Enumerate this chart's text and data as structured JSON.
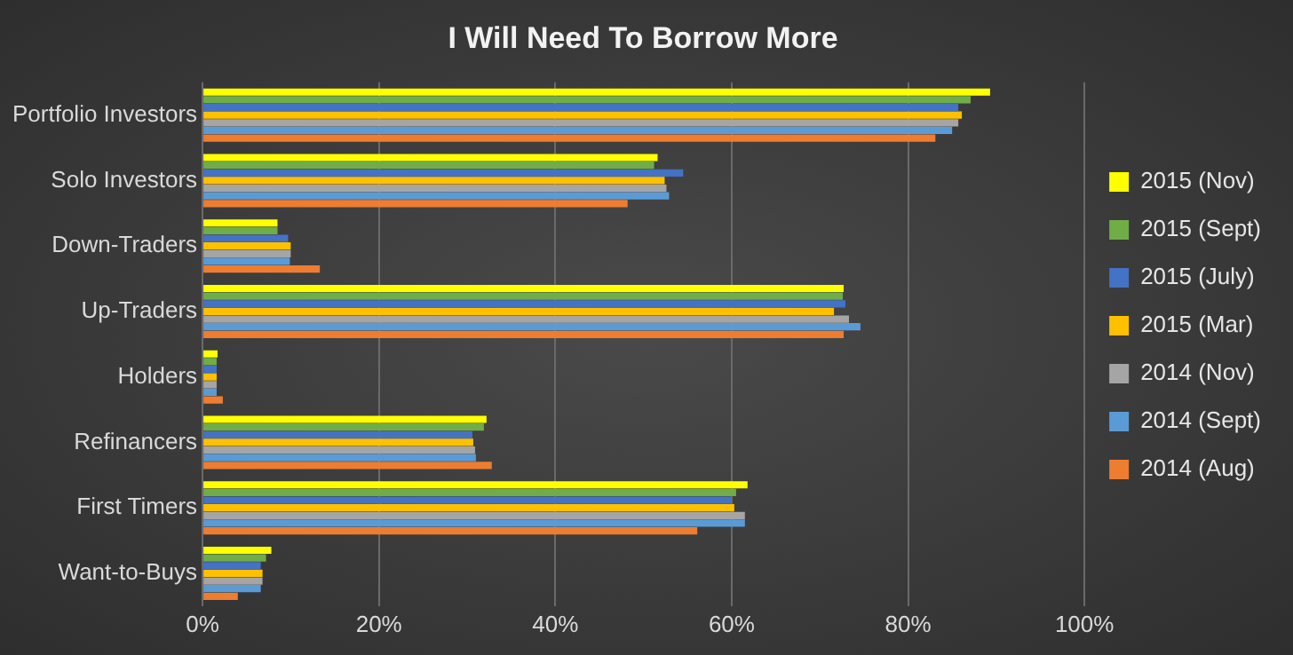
{
  "chart_data": {
    "type": "bar",
    "orientation": "horizontal",
    "title": "I Will Need To Borrow More",
    "categories": [
      "Portfolio Investors",
      "Solo Investors",
      "Down-Traders",
      "Up-Traders",
      "Holders",
      "Refinancers",
      "First Timers",
      "Want-to-Buys"
    ],
    "series": [
      {
        "name": "2015 (Nov)",
        "color": "#ffff00",
        "values": [
          89.3,
          51.6,
          8.5,
          72.7,
          1.7,
          32.2,
          61.8,
          7.8
        ]
      },
      {
        "name": "2015 (Sept)",
        "color": "#70ad47",
        "values": [
          87.1,
          51.2,
          8.5,
          72.6,
          1.6,
          31.9,
          60.5,
          7.2
        ]
      },
      {
        "name": "2015 (July)",
        "color": "#4472c4",
        "values": [
          85.7,
          54.5,
          9.7,
          72.9,
          1.6,
          30.6,
          60.0,
          6.6
        ]
      },
      {
        "name": "2015 (Mar)",
        "color": "#ffc000",
        "values": [
          86.1,
          52.4,
          10.0,
          71.6,
          1.6,
          30.7,
          60.3,
          6.8
        ]
      },
      {
        "name": "2014 (Nov)",
        "color": "#a5a5a5",
        "values": [
          85.7,
          52.6,
          10.0,
          73.3,
          1.6,
          30.9,
          61.5,
          6.8
        ]
      },
      {
        "name": "2014 (Sept)",
        "color": "#5b9bd5",
        "values": [
          85.0,
          52.9,
          9.9,
          74.6,
          1.6,
          31.0,
          61.5,
          6.6
        ]
      },
      {
        "name": "2014 (Aug)",
        "color": "#ed7d31",
        "values": [
          83.1,
          48.2,
          13.3,
          72.7,
          2.3,
          32.8,
          56.1,
          4.0
        ]
      }
    ],
    "xlim": [
      0,
      100
    ],
    "xticks": [
      {
        "value": 0,
        "label": "0%"
      },
      {
        "value": 20,
        "label": "20%"
      },
      {
        "value": 40,
        "label": "40%"
      },
      {
        "value": 60,
        "label": "60%"
      },
      {
        "value": 80,
        "label": "80%"
      },
      {
        "value": 100,
        "label": "100%"
      }
    ],
    "grid": "x",
    "legend": "right"
  }
}
